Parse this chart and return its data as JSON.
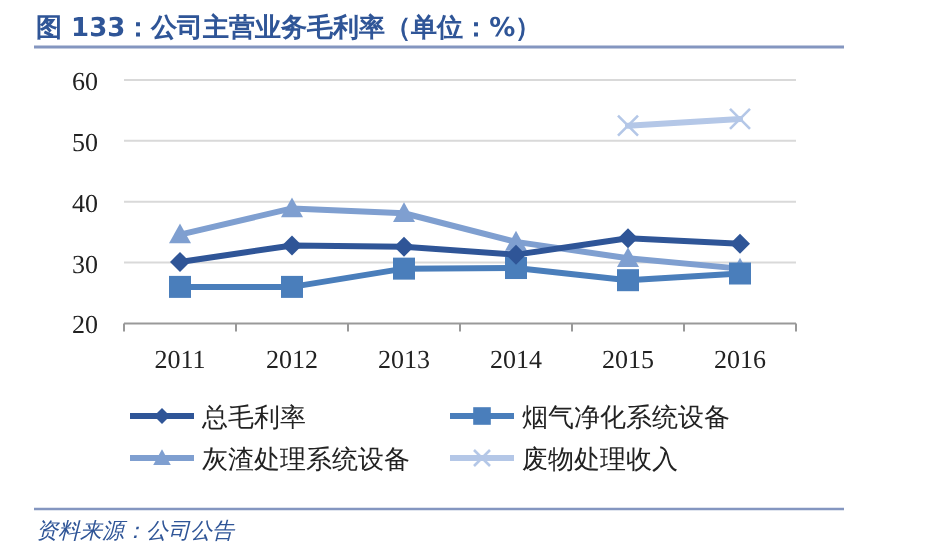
{
  "chart_data": {
    "type": "line",
    "title": "图 133：公司主营业务毛利率（单位：%）",
    "annotations": [
      "资料来源：公司公告"
    ],
    "categories": [
      "2011",
      "2012",
      "2013",
      "2014",
      "2015",
      "2016"
    ],
    "series": [
      {
        "name": "总毛利率",
        "color": "#2f5597",
        "marker": "diamond",
        "values": [
          30.1,
          32.8,
          32.6,
          31.3,
          34.0,
          33.1
        ]
      },
      {
        "name": "烟气净化系统设备",
        "color": "#4a7ebb",
        "marker": "square",
        "values": [
          26.0,
          26.0,
          29.0,
          29.1,
          27.1,
          28.2
        ]
      },
      {
        "name": "灰渣处理系统设备",
        "color": "#7f9fd0",
        "marker": "triangle",
        "values": [
          34.6,
          38.9,
          38.1,
          33.4,
          30.7,
          29.0
        ]
      },
      {
        "name": "废物处理收入",
        "color": "#b4c7e7",
        "marker": "cross",
        "values": [
          null,
          null,
          null,
          null,
          52.5,
          53.6
        ]
      }
    ],
    "ylim": [
      20,
      60
    ],
    "yticks": [
      20,
      30,
      40,
      50,
      60
    ],
    "grid": "y",
    "legend": "bottom"
  }
}
